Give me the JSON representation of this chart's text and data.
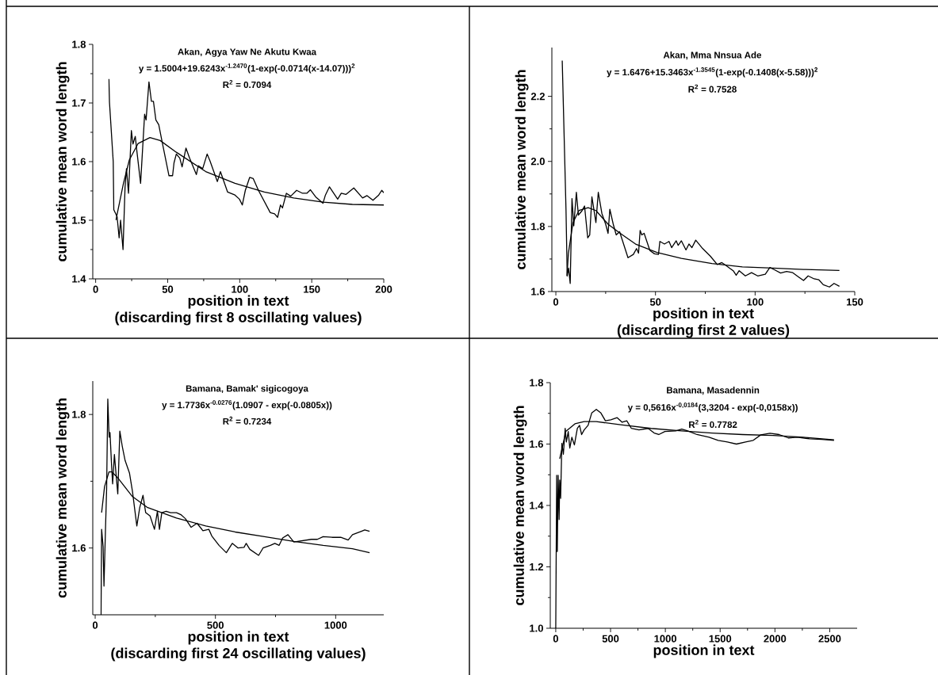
{
  "chart_data": [
    {
      "type": "line",
      "title": "Akan, Agya Yaw Ne Akutu Kwaa",
      "subtitle": "y = 1.5004+19.6243x$^{-1.2470}$(1-exp(-0.0714(x-14.07)))$^{2}$",
      "annotations": [
        "R$^{2}$ = 0.7094",
        "(discarding first 8 oscillating values)"
      ],
      "xlabel": "position in text",
      "ylabel": "cumulative mean word length",
      "xlim": [
        -2,
        200
      ],
      "ylim": [
        1.4,
        1.8
      ],
      "xticks": [
        0,
        50,
        100,
        150,
        200
      ],
      "yticks": [
        1.4,
        1.5,
        1.6,
        1.7,
        1.8
      ],
      "series": [
        {
          "color": "#000000",
          "x": [
            9.2,
            9.6,
            12.2,
            12.6,
            14.9,
            16.3,
            17.3,
            19,
            20.4,
            21.4,
            22.8,
            24.8,
            25.9,
            27.5,
            28.7,
            31.2,
            34,
            35,
            37,
            38.7,
            40.1,
            41.8,
            43.8,
            45.8,
            50.9,
            53.4,
            54.4,
            56,
            58.4,
            60,
            62.7,
            65.2,
            69.9,
            71.3,
            74.3,
            77.4,
            79.4,
            84.5,
            86.6,
            91.6,
            96.7,
            99.8,
            101.8,
            103.9,
            106.9,
            109.4,
            113,
            121.2,
            124.2,
            126.3,
            128.3,
            129.7,
            132.4,
            135.4,
            139.5,
            143.6,
            146.6,
            149.1,
            152.7,
            157.8,
            159.5,
            162.3,
            168,
            170.5,
            173.7,
            179.2,
            185.3,
            188.4,
            192.5,
            196.5,
            198.6,
            200
          ],
          "values": [
            1.741,
            1.701,
            1.6,
            1.518,
            1.506,
            1.47,
            1.5,
            1.45,
            1.556,
            1.588,
            1.546,
            1.653,
            1.63,
            1.643,
            1.616,
            1.563,
            1.681,
            1.671,
            1.736,
            1.703,
            1.703,
            1.671,
            1.663,
            1.638,
            1.576,
            1.576,
            1.598,
            1.613,
            1.606,
            1.591,
            1.623,
            1.606,
            1.578,
            1.593,
            1.588,
            1.613,
            1.601,
            1.566,
            1.583,
            1.548,
            1.543,
            1.536,
            1.526,
            1.551,
            1.573,
            1.571,
            1.551,
            1.513,
            1.511,
            1.505,
            1.526,
            1.521,
            1.546,
            1.541,
            1.551,
            1.546,
            1.546,
            1.552,
            1.54,
            1.529,
            1.543,
            1.557,
            1.536,
            1.546,
            1.544,
            1.555,
            1.538,
            1.542,
            1.534,
            1.543,
            1.551,
            1.547
          ]
        },
        {
          "color": "#000000",
          "x": [
            14.07,
            19.3,
            23.4,
            29.5,
            37.7,
            44.8,
            56,
            76.4,
            96.7,
            117.1,
            137.5,
            157.8,
            178.2,
            200
          ],
          "values": [
            1.5,
            1.563,
            1.603,
            1.631,
            1.641,
            1.636,
            1.616,
            1.583,
            1.563,
            1.548,
            1.538,
            1.531,
            1.527,
            1.526
          ]
        }
      ]
    },
    {
      "type": "line",
      "title": "Akan, Mma Nnsua Ade",
      "subtitle": "y = 1.6476+15.3463x$^{-1.3545}$(1-exp(-0.1408(x-5.58)))$^{2}$",
      "annotations": [
        "R$^{2}$ = 0.7528",
        "(discarding first 2 values)"
      ],
      "xlabel": "position in text",
      "ylabel": "cumulative mean word length",
      "xlim": [
        -2,
        150
      ],
      "ylim": [
        1.6,
        2.35
      ],
      "xticks": [
        0,
        50,
        100,
        150
      ],
      "yticks": [
        1.6,
        1.8,
        {
          "value": 2.0,
          "label": "2.0"
        },
        2.2
      ],
      "series": [
        {
          "color": "#000000",
          "x": [
            3.2,
            5.1,
            5.7,
            6.4,
            7.2,
            8.1,
            9,
            10.3,
            11.3,
            13.2,
            14.4,
            16,
            17,
            18.1,
            20.1,
            21.3,
            23.1,
            25,
            26.2,
            27.1,
            28.8,
            30.3,
            32,
            36.2,
            38.9,
            40.5,
            41.5,
            42.3,
            43.1,
            44.3,
            47.2,
            49.5,
            51.5,
            52.2,
            54.5,
            56.8,
            58.1,
            60.4,
            61.4,
            63,
            65.3,
            66.8,
            68.3,
            70.2,
            73.7,
            77.5,
            81,
            83.3,
            85.2,
            87.2,
            89,
            90.5,
            92,
            95.1,
            98.2,
            101.3,
            105.1,
            107.4,
            109.7,
            112.8,
            115.8,
            118.9,
            122,
            124.3,
            126.6,
            129.6,
            132,
            134.2,
            137.3,
            139.6,
            142.3
          ],
          "values": [
            2.31,
            1.849,
            1.648,
            1.672,
            1.625,
            1.886,
            1.802,
            1.905,
            1.835,
            1.849,
            1.863,
            1.765,
            1.774,
            1.891,
            1.812,
            1.905,
            1.84,
            1.807,
            1.779,
            1.853,
            1.807,
            1.774,
            1.784,
            1.704,
            1.714,
            1.732,
            1.718,
            1.788,
            1.774,
            1.779,
            1.726,
            1.716,
            1.714,
            1.754,
            1.746,
            1.754,
            1.735,
            1.756,
            1.742,
            1.756,
            1.728,
            1.746,
            1.735,
            1.758,
            1.732,
            1.709,
            1.683,
            1.689,
            1.681,
            1.672,
            1.664,
            1.65,
            1.664,
            1.648,
            1.658,
            1.648,
            1.653,
            1.674,
            1.667,
            1.657,
            1.662,
            1.658,
            1.644,
            1.634,
            1.648,
            1.639,
            1.636,
            1.621,
            1.614,
            1.625,
            1.616
          ]
        },
        {
          "color": "#000000",
          "x": [
            5.58,
            6.3,
            8.6,
            11.6,
            16.2,
            20.1,
            26.2,
            32.3,
            40,
            50.7,
            63,
            78.3,
            93.6,
            108.9,
            124.3,
            142.3
          ],
          "values": [
            1.648,
            1.718,
            1.812,
            1.849,
            1.858,
            1.849,
            1.807,
            1.779,
            1.746,
            1.72,
            1.702,
            1.686,
            1.676,
            1.672,
            1.668,
            1.665
          ]
        }
      ]
    },
    {
      "type": "line",
      "title": "Bamana, Bamak' sigicogoya",
      "subtitle": "y = 1.7736x$^{-0.0276}$(1.0907 - exp(-0.0805x))",
      "annotations": [
        "R$^{2}$ = 0.7234",
        "(discarding first 24 oscillating values)"
      ],
      "xlabel": "position in text",
      "ylabel": "cumulative mean word length",
      "xlim": [
        -10,
        1200
      ],
      "ylim": [
        1.5,
        1.85
      ],
      "xticks": [
        0,
        500,
        1000
      ],
      "yticks": [
        1.6,
        1.8
      ],
      "series": [
        {
          "color": "#000000",
          "x": [
            24.4,
            26.8,
            33,
            36.6,
            42.7,
            47.6,
            52.5,
            58,
            61.6,
            68.3,
            72.6,
            80,
            86,
            94,
            102.5,
            112.3,
            124.5,
            142.8,
            155,
            173.2,
            185.5,
            198.9,
            210,
            228.2,
            246.5,
            258.8,
            267.2,
            277,
            295,
            313.6,
            338,
            356.3,
            375,
            399,
            423.4,
            448,
            472.6,
            485,
            515,
            545.4,
            570,
            594,
            619,
            628,
            643,
            679.7,
            698,
            728.5,
            747,
            765,
            779.7,
            801.7,
            826,
            862.7,
            899.4,
            923.8,
            948,
            984.7,
            1021,
            1052,
            1070,
            1107,
            1121,
            1141
          ],
          "values": [
            1.5,
            1.628,
            1.602,
            1.543,
            1.626,
            1.688,
            1.823,
            1.766,
            1.773,
            1.723,
            1.696,
            1.74,
            1.714,
            1.681,
            1.775,
            1.753,
            1.731,
            1.712,
            1.685,
            1.633,
            1.661,
            1.679,
            1.653,
            1.648,
            1.628,
            1.655,
            1.628,
            1.653,
            1.655,
            1.653,
            1.653,
            1.65,
            1.644,
            1.631,
            1.637,
            1.626,
            1.628,
            1.618,
            1.604,
            1.593,
            1.607,
            1.6,
            1.601,
            1.607,
            1.598,
            1.589,
            1.6,
            1.604,
            1.607,
            1.604,
            1.615,
            1.62,
            1.609,
            1.611,
            1.613,
            1.613,
            1.617,
            1.616,
            1.616,
            1.612,
            1.62,
            1.625,
            1.627,
            1.625
          ]
        },
        {
          "color": "#000000",
          "x": [
            26.8,
            39,
            57.4,
            69.6,
            94,
            155,
            216,
            338,
            460,
            582,
            704,
            826,
            948,
            1070,
            1141
          ],
          "values": [
            1.653,
            1.692,
            1.714,
            1.714,
            1.705,
            1.677,
            1.661,
            1.645,
            1.633,
            1.624,
            1.617,
            1.61,
            1.604,
            1.599,
            1.593
          ]
        }
      ]
    },
    {
      "type": "line",
      "title": "Bamana, Masadennin",
      "subtitle": "y = 0,5616x$^{-0,0184}$(3,3204 - exp(-0,0158x))",
      "annotations": [
        "R$^{2}$ = 0.7782"
      ],
      "xlabel": "position in text",
      "ylabel": "cumulative mean word length",
      "xlim": [
        -50,
        2750
      ],
      "ylim": [
        1.0,
        1.8
      ],
      "xticks": [
        0,
        500,
        1000,
        1500,
        2000,
        2500
      ],
      "yticks": [
        {
          "value": 1.0,
          "label": "1.0"
        },
        1.2,
        1.4,
        1.6,
        1.8
      ],
      "series": [
        {
          "color": "#000000",
          "x": [
            0,
            8.3,
            13.9,
            22,
            30.6,
            36,
            44.5,
            55.6,
            69.5,
            86,
            97,
            114,
            128,
            147,
            170,
            197,
            217,
            236,
            259,
            295,
            328,
            370,
            412,
            453,
            503,
            560,
            606,
            648,
            690,
            759,
            843,
            898,
            940,
            996,
            1095,
            1150,
            1204,
            1288,
            1399,
            1482,
            1566,
            1649,
            1732,
            1802,
            1871,
            1955,
            2038,
            2122,
            2205,
            2316,
            2427,
            2539
          ],
          "values": [
            1.0,
            1.498,
            1.25,
            1.498,
            1.354,
            1.483,
            1.423,
            1.602,
            1.567,
            1.651,
            1.607,
            1.641,
            1.587,
            1.622,
            1.597,
            1.651,
            1.661,
            1.631,
            1.646,
            1.661,
            1.701,
            1.713,
            1.701,
            1.676,
            1.679,
            1.686,
            1.671,
            1.676,
            1.651,
            1.646,
            1.651,
            1.636,
            1.631,
            1.641,
            1.643,
            1.649,
            1.643,
            1.631,
            1.622,
            1.612,
            1.607,
            1.6,
            1.607,
            1.612,
            1.63,
            1.635,
            1.631,
            1.62,
            1.622,
            1.617,
            1.615,
            1.612
          ]
        },
        {
          "color": "#000000",
          "x": [
            36,
            92,
            175,
            259,
            370,
            592,
            870,
            1148,
            1427,
            1705,
            1983,
            2261,
            2539
          ],
          "values": [
            1.552,
            1.641,
            1.666,
            1.673,
            1.673,
            1.663,
            1.651,
            1.643,
            1.636,
            1.631,
            1.628,
            1.622,
            1.614
          ]
        }
      ]
    }
  ]
}
